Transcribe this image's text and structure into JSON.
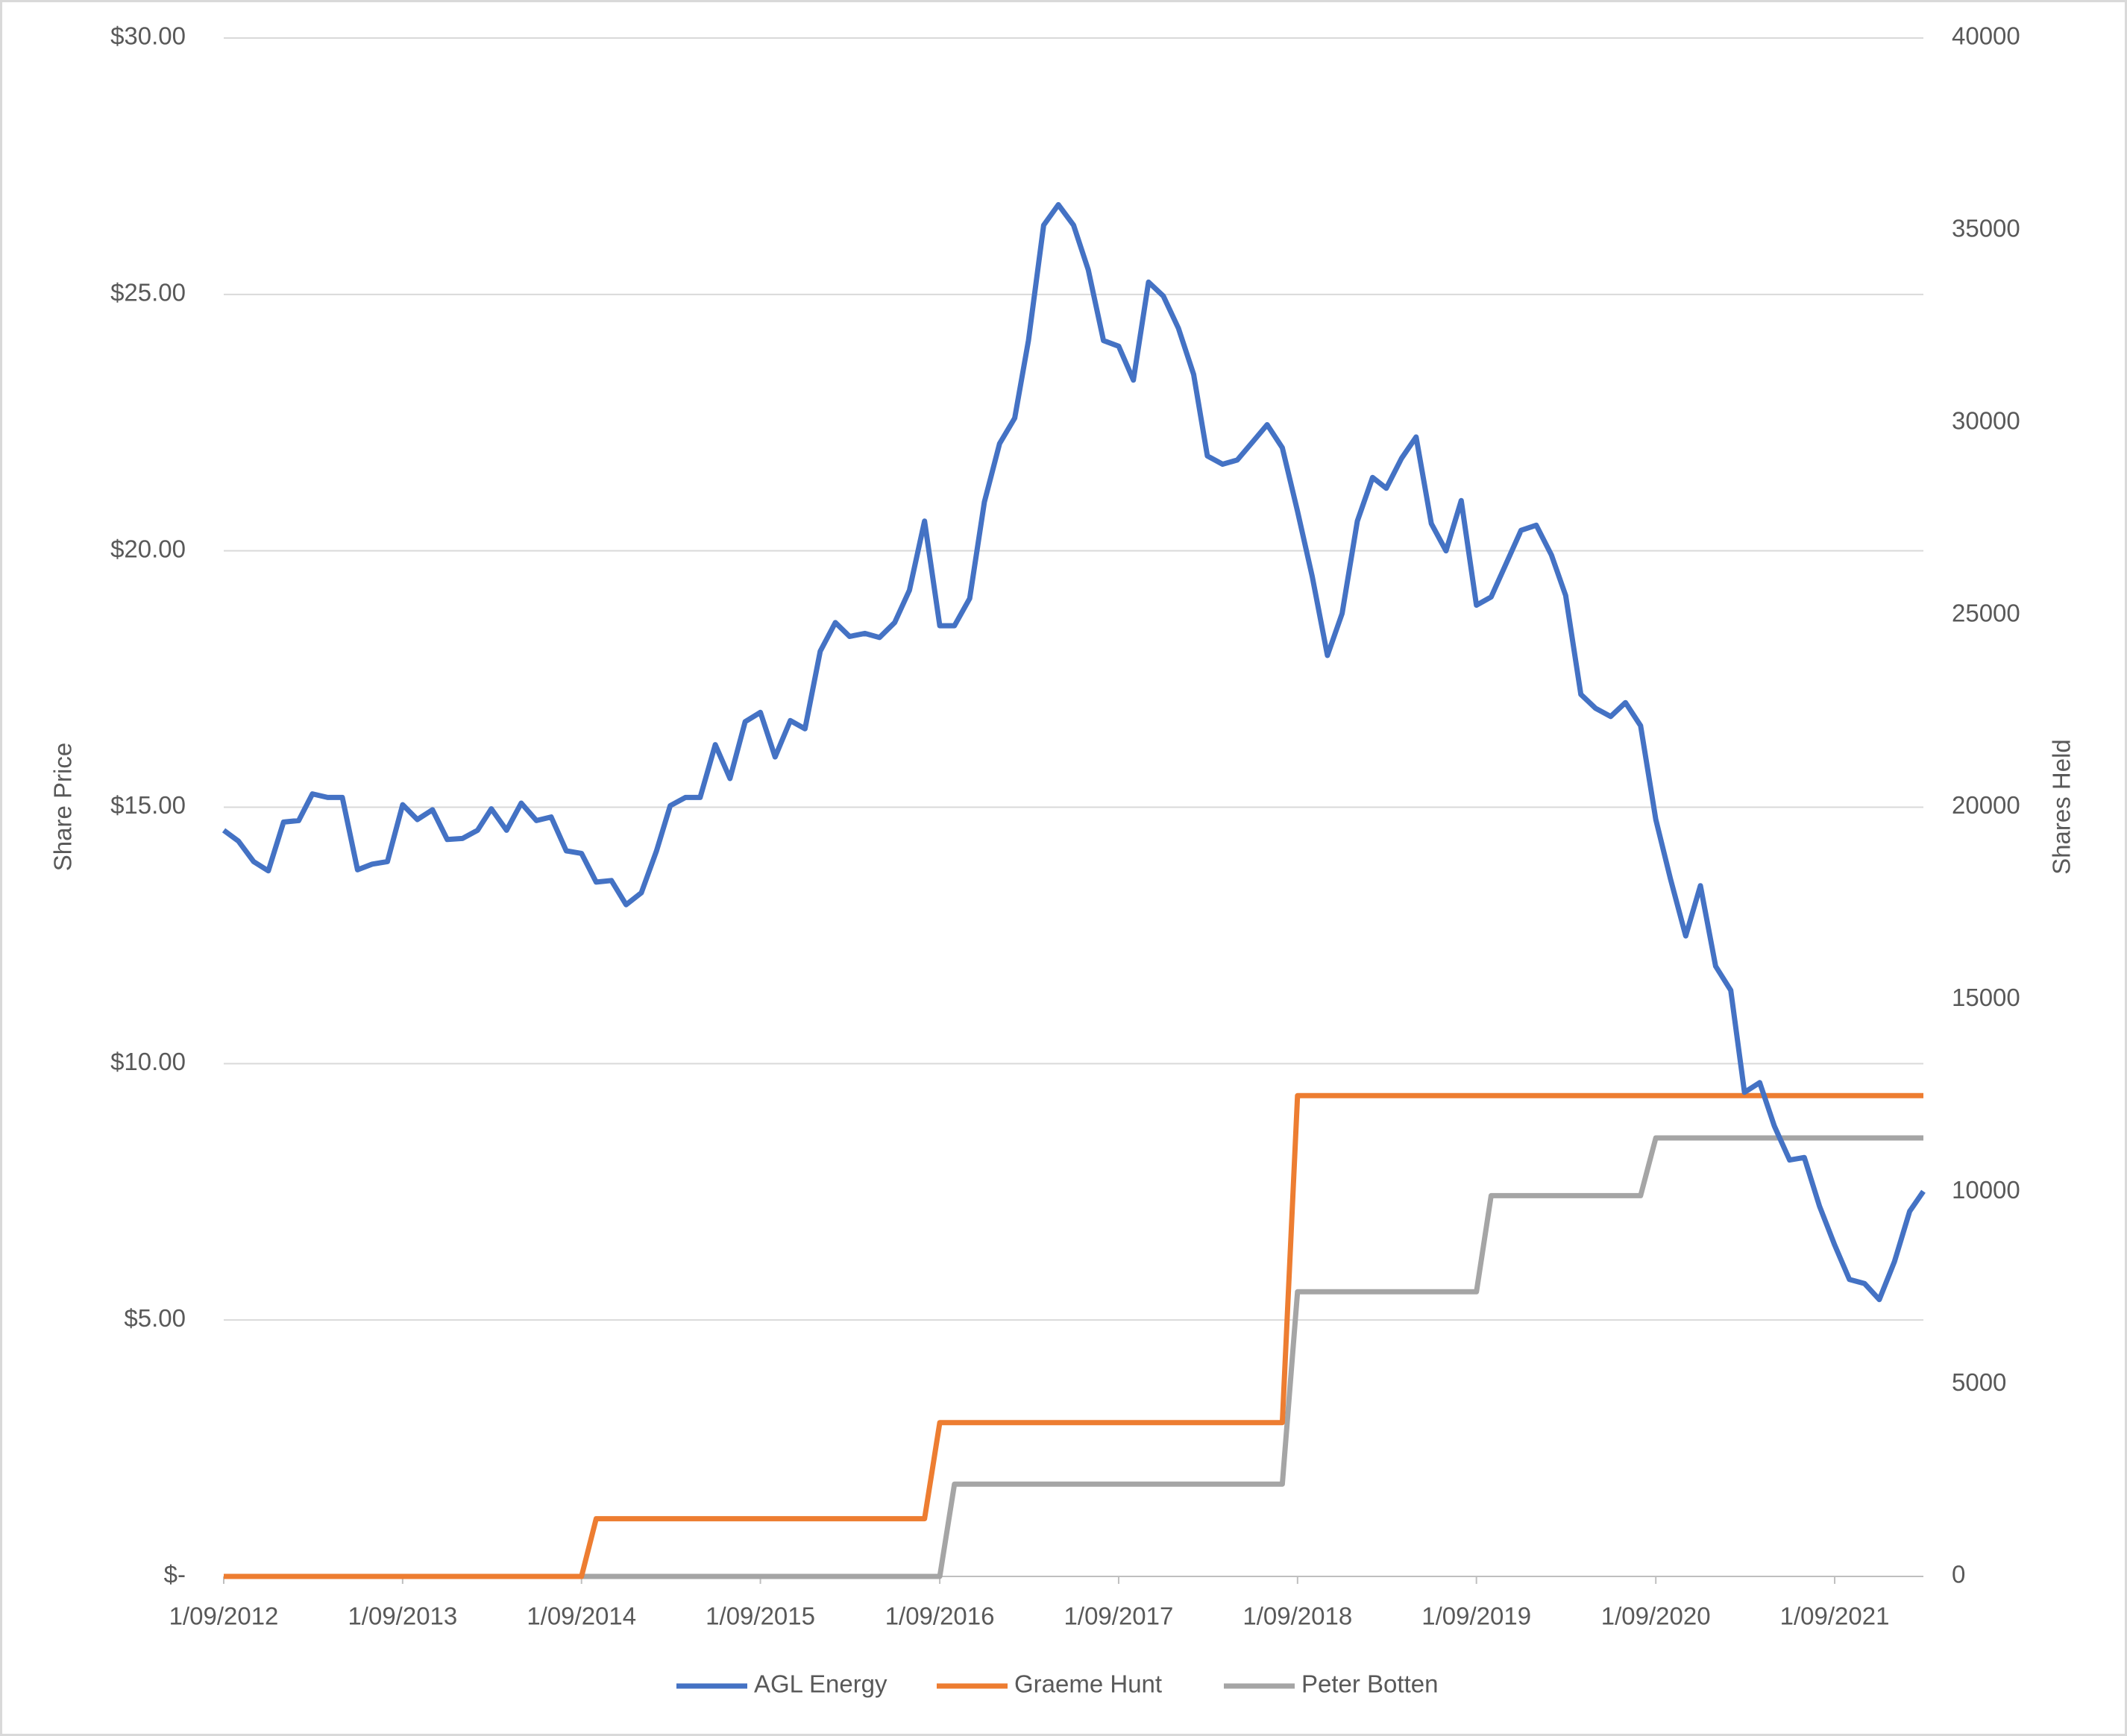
{
  "chart_data": {
    "type": "line",
    "ylabel": "Share Price",
    "y2label": "Shares Held",
    "xlim": [
      "1/09/2012",
      "1/03/2022"
    ],
    "xticks": [
      "1/09/2012",
      "1/09/2013",
      "1/09/2014",
      "1/09/2015",
      "1/09/2016",
      "1/09/2017",
      "1/09/2018",
      "1/09/2019",
      "1/09/2020",
      "1/09/2021"
    ],
    "ylim": [
      0,
      30
    ],
    "yticks": [
      {
        "value": 0,
        "label": "$-"
      },
      {
        "value": 5,
        "label": "$5.00"
      },
      {
        "value": 10,
        "label": "$10.00"
      },
      {
        "value": 15,
        "label": "$15.00"
      },
      {
        "value": 20,
        "label": "$20.00"
      },
      {
        "value": 25,
        "label": "$25.00"
      },
      {
        "value": 30,
        "label": "$30.00"
      }
    ],
    "y2lim": [
      0,
      40000
    ],
    "y2ticks": [
      0,
      5000,
      10000,
      15000,
      20000,
      25000,
      30000,
      35000,
      40000
    ],
    "grid": true,
    "legend": "bottom",
    "series": [
      {
        "name": "AGL Energy",
        "color": "#4472c4",
        "x": [
          "1/09/2012",
          "1/10/2012",
          "1/11/2012",
          "1/12/2012",
          "1/01/2013",
          "1/02/2013",
          "1/03/2013",
          "1/04/2013",
          "1/05/2013",
          "1/06/2013",
          "1/07/2013",
          "1/08/2013",
          "1/09/2013",
          "1/10/2013",
          "1/11/2013",
          "1/12/2013",
          "1/01/2014",
          "1/02/2014",
          "1/03/2014",
          "1/04/2014",
          "1/05/2014",
          "1/06/2014",
          "1/07/2014",
          "1/08/2014",
          "1/09/2014",
          "1/10/2014",
          "1/11/2014",
          "1/12/2014",
          "1/01/2015",
          "1/02/2015",
          "1/03/2015",
          "1/04/2015",
          "1/05/2015",
          "1/06/2015",
          "1/07/2015",
          "1/08/2015",
          "1/09/2015",
          "1/10/2015",
          "1/11/2015",
          "1/12/2015",
          "1/01/2016",
          "1/02/2016",
          "1/03/2016",
          "1/04/2016",
          "1/05/2016",
          "1/06/2016",
          "1/07/2016",
          "1/08/2016",
          "1/09/2016",
          "1/10/2016",
          "1/11/2016",
          "1/12/2016",
          "1/01/2017",
          "1/02/2017",
          "1/03/2017",
          "1/04/2017",
          "1/05/2017",
          "1/06/2017",
          "1/07/2017",
          "1/08/2017",
          "1/09/2017",
          "1/10/2017",
          "1/11/2017",
          "1/12/2017",
          "1/01/2018",
          "1/02/2018",
          "1/03/2018",
          "1/04/2018",
          "1/05/2018",
          "1/06/2018",
          "1/07/2018",
          "1/08/2018",
          "1/09/2018",
          "1/10/2018",
          "1/11/2018",
          "1/12/2018",
          "1/01/2019",
          "1/02/2019",
          "1/03/2019",
          "1/04/2019",
          "1/05/2019",
          "1/06/2019",
          "1/07/2019",
          "1/08/2019",
          "1/09/2019",
          "1/10/2019",
          "1/11/2019",
          "1/12/2019",
          "1/01/2020",
          "1/02/2020",
          "1/03/2020",
          "1/04/2020",
          "1/05/2020",
          "1/06/2020",
          "1/07/2020",
          "1/08/2020",
          "1/09/2020",
          "1/10/2020",
          "1/11/2020",
          "1/12/2020",
          "1/01/2021",
          "1/02/2021",
          "1/03/2021",
          "1/04/2021",
          "1/05/2021",
          "1/06/2021",
          "1/07/2021",
          "1/08/2021",
          "1/09/2021",
          "1/10/2021",
          "1/11/2021",
          "1/12/2021",
          "1/01/2022",
          "1/02/2022",
          "1/03/2022"
        ],
        "values": [
          14.55,
          14.34,
          13.94,
          13.76,
          14.71,
          14.74,
          15.26,
          15.19,
          15.19,
          13.78,
          13.89,
          13.94,
          15.05,
          14.76,
          14.95,
          14.37,
          14.39,
          14.55,
          14.97,
          14.55,
          15.08,
          14.74,
          14.81,
          14.15,
          14.1,
          13.54,
          13.57,
          13.1,
          13.33,
          14.15,
          15.03,
          15.19,
          15.19,
          16.22,
          15.56,
          16.67,
          16.85,
          15.98,
          16.69,
          16.53,
          18.04,
          18.6,
          18.33,
          18.39,
          18.31,
          18.6,
          19.23,
          20.58,
          18.54,
          18.54,
          19.07,
          20.95,
          22.09,
          22.59,
          24.1,
          26.35,
          26.75,
          26.35,
          25.48,
          24.1,
          23.99,
          23.33,
          25.24,
          24.97,
          24.34,
          23.44,
          21.85,
          21.69,
          21.77,
          22.12,
          22.46,
          22.01,
          20.77,
          19.5,
          17.96,
          18.78,
          20.58,
          21.43,
          21.22,
          21.8,
          22.22,
          20.53,
          20.0,
          20.98,
          18.94,
          19.1,
          19.76,
          20.4,
          20.5,
          19.92,
          19.13,
          17.2,
          16.93,
          16.77,
          17.04,
          16.59,
          14.76,
          13.6,
          12.49,
          13.47,
          11.9,
          11.43,
          9.44,
          9.63,
          8.78,
          8.12,
          8.17,
          7.22,
          6.46,
          5.79,
          5.71,
          5.4,
          6.14,
          7.12,
          7.51
        ]
      },
      {
        "name": "Graeme Hunt",
        "color": "#ed7d31",
        "axis": "y2",
        "x": [
          "1/09/2012",
          "1/09/2014",
          "1/10/2014",
          "1/08/2016",
          "1/09/2016",
          "1/08/2018",
          "1/09/2018",
          "1/03/2022"
        ],
        "values": [
          0,
          0,
          1500,
          1500,
          4000,
          4000,
          12500,
          12500
        ]
      },
      {
        "name": "Peter Botten",
        "color": "#a5a5a5",
        "axis": "y2",
        "x": [
          "1/09/2012",
          "1/09/2016",
          "1/10/2016",
          "1/08/2018",
          "1/09/2018",
          "1/09/2019",
          "1/10/2019",
          "1/08/2020",
          "1/09/2020",
          "1/03/2022"
        ],
        "values": [
          0,
          0,
          2400,
          2400,
          7400,
          7400,
          9900,
          9900,
          11400,
          11400
        ]
      }
    ]
  }
}
